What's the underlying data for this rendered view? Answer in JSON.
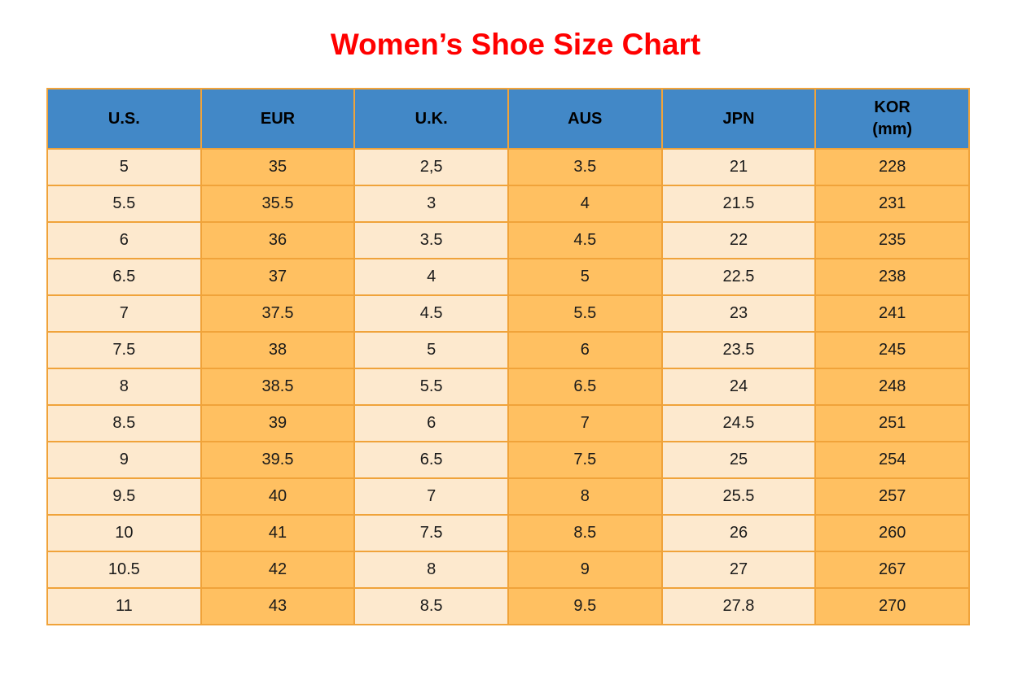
{
  "colors": {
    "page_bg": "#ffffff",
    "title_color": "#ff0000",
    "header_bg": "#4288c7",
    "header_text": "#000000",
    "cell_light": "#fde9ce",
    "cell_orange": "#ffc061",
    "border_color": "#f0a33a",
    "cell_text": "#1a1a1a"
  },
  "chart_data": {
    "type": "table",
    "title": "Women’s Shoe Size Chart",
    "columns": [
      "U.S.",
      "EUR",
      "U.K.",
      "AUS",
      "JPN",
      "KOR\n(mm)"
    ],
    "rows": [
      [
        "5",
        "35",
        "2,5",
        "3.5",
        "21",
        "228"
      ],
      [
        "5.5",
        "35.5",
        "3",
        "4",
        "21.5",
        "231"
      ],
      [
        "6",
        "36",
        "3.5",
        "4.5",
        "22",
        "235"
      ],
      [
        "6.5",
        "37",
        "4",
        "5",
        "22.5",
        "238"
      ],
      [
        "7",
        "37.5",
        "4.5",
        "5.5",
        "23",
        "241"
      ],
      [
        "7.5",
        "38",
        "5",
        "6",
        "23.5",
        "245"
      ],
      [
        "8",
        "38.5",
        "5.5",
        "6.5",
        "24",
        "248"
      ],
      [
        "8.5",
        "39",
        "6",
        "7",
        "24.5",
        "251"
      ],
      [
        "9",
        "39.5",
        "6.5",
        "7.5",
        "25",
        "254"
      ],
      [
        "9.5",
        "40",
        "7",
        "8",
        "25.5",
        "257"
      ],
      [
        "10",
        "41",
        "7.5",
        "8.5",
        "26",
        "260"
      ],
      [
        "10.5",
        "42",
        "8",
        "9",
        "27",
        "267"
      ],
      [
        "11",
        "43",
        "8.5",
        "9.5",
        "27.8",
        "270"
      ]
    ],
    "layout": {
      "grid": true,
      "column_stripe_pattern": [
        "cream",
        "orange",
        "cream",
        "orange",
        "cream",
        "orange"
      ]
    }
  }
}
